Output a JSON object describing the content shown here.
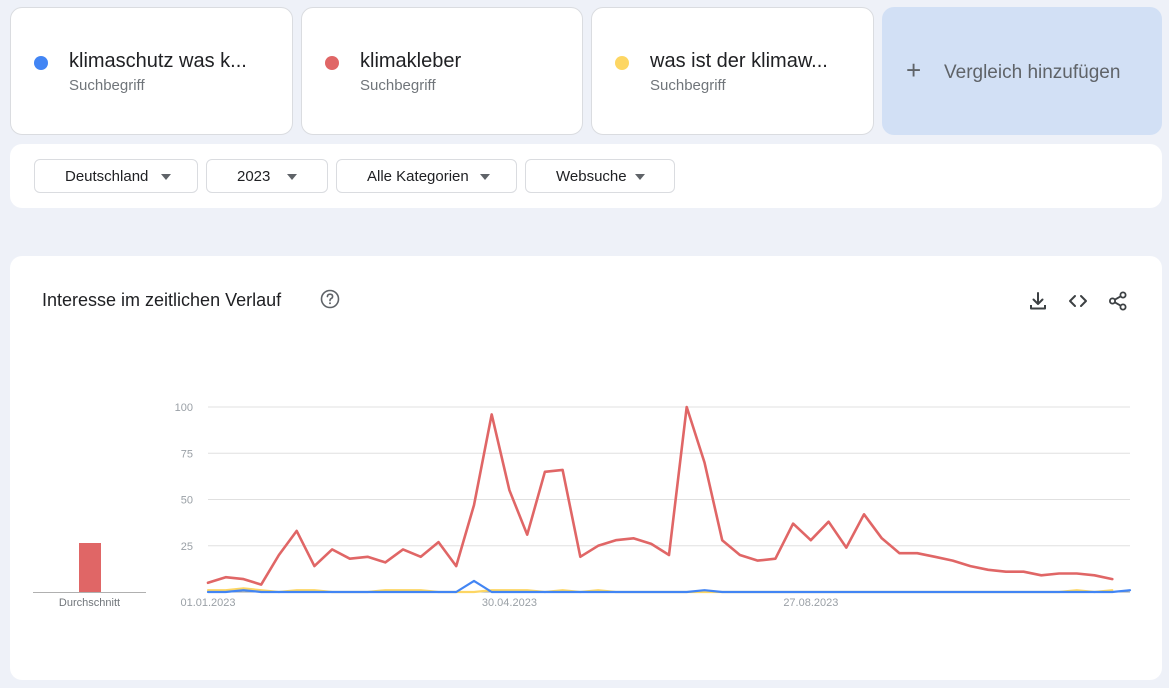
{
  "terms": [
    {
      "name": "klimaschutz was k...",
      "type": "Suchbegriff",
      "color": "#4285f4"
    },
    {
      "name": "klimakleber",
      "type": "Suchbegriff",
      "color": "#e06666"
    },
    {
      "name": "was ist der klimaw...",
      "type": "Suchbegriff",
      "color": "#fdd663"
    }
  ],
  "add_compare": "Vergleich hinzufügen",
  "filters": {
    "region": "Deutschland",
    "time": "2023",
    "category": "Alle Kategorien",
    "search_type": "Websuche"
  },
  "panel": {
    "title": "Interesse im zeitlichen Verlauf",
    "icons": [
      "help-icon",
      "download-icon",
      "embed-icon",
      "share-icon"
    ]
  },
  "average_label": "Durchschnitt",
  "chart_data": {
    "type": "line",
    "yticks": [
      100,
      75,
      50,
      25
    ],
    "ylim": [
      0,
      100
    ],
    "xtick_labels": [
      {
        "index": 0,
        "label": "01.01.2023"
      },
      {
        "index": 17,
        "label": "30.04.2023"
      },
      {
        "index": 34,
        "label": "27.08.2023"
      }
    ],
    "grid": true,
    "average": {
      "series": "klimakleber",
      "value": 26
    },
    "series": [
      {
        "name": "klimaschutz was k...",
        "color": "#4285f4",
        "values": [
          0,
          0,
          1,
          0,
          0,
          0,
          0,
          0,
          0,
          0,
          0,
          0,
          0,
          0,
          0,
          6,
          0,
          0,
          0,
          0,
          0,
          0,
          0,
          0,
          0,
          0,
          0,
          0,
          1,
          0,
          0,
          0,
          0,
          0,
          0,
          0,
          0,
          0,
          0,
          0,
          0,
          0,
          0,
          0,
          0,
          0,
          0,
          0,
          0,
          0,
          0,
          0,
          1
        ]
      },
      {
        "name": "klimakleber",
        "color": "#e06666",
        "values": [
          5,
          8,
          7,
          4,
          20,
          33,
          14,
          23,
          18,
          19,
          16,
          23,
          19,
          27,
          14,
          47,
          96,
          55,
          31,
          65,
          66,
          19,
          25,
          28,
          29,
          26,
          20,
          100,
          70,
          28,
          20,
          17,
          18,
          37,
          28,
          38,
          24,
          42,
          29,
          21,
          21,
          19,
          17,
          14,
          12,
          11,
          11,
          9,
          10,
          10,
          9,
          7
        ]
      },
      {
        "name": "was ist der klimaw...",
        "color": "#fdd663",
        "values": [
          1,
          1,
          2,
          1,
          0,
          1,
          1,
          0,
          0,
          0,
          1,
          1,
          1,
          0,
          0,
          0,
          1,
          1,
          1,
          0,
          1,
          0,
          1,
          0,
          0,
          0,
          0,
          0,
          0,
          0,
          0,
          0,
          0,
          0,
          0,
          0,
          0,
          0,
          0,
          0,
          0,
          0,
          0,
          0,
          0,
          0,
          0,
          0,
          0,
          1,
          0,
          1
        ]
      }
    ]
  }
}
